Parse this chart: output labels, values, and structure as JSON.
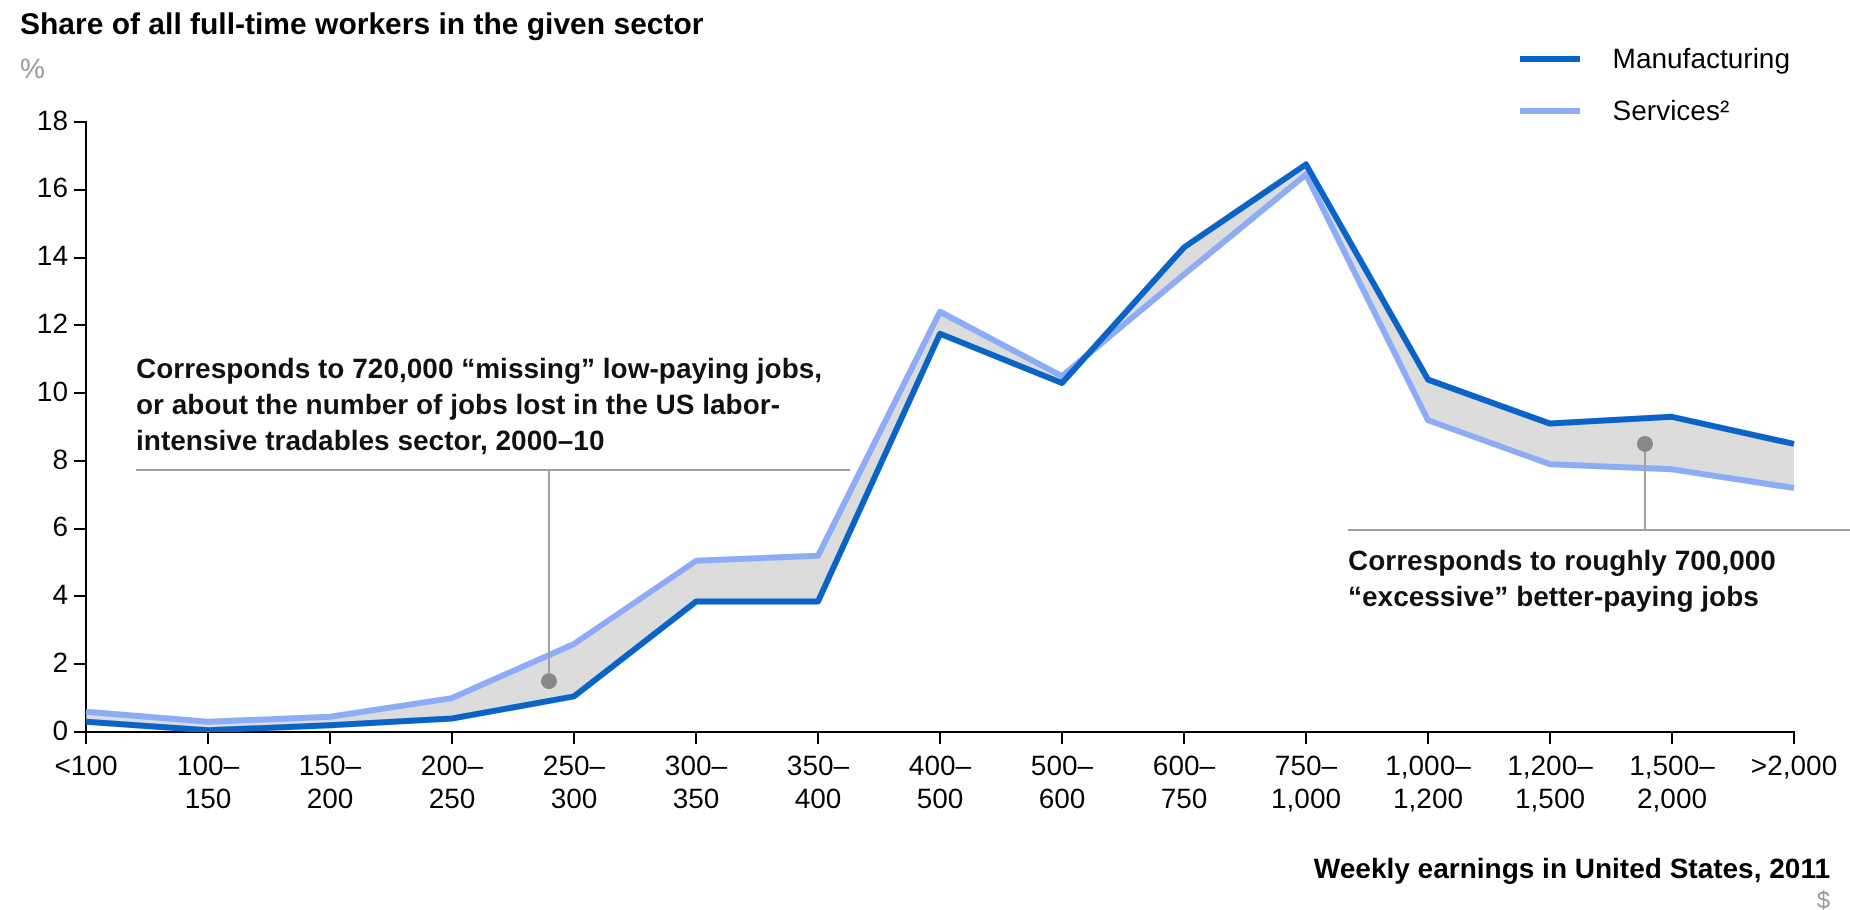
{
  "chart_data": {
    "type": "line",
    "title": "Share of all full-time workers in the given sector",
    "ylabel": "%",
    "xlabel": "Weekly earnings in United States, 2011",
    "categories": [
      "<100",
      "100–150",
      "150–200",
      "200–250",
      "250–300",
      "300–350",
      "350–400",
      "400–500",
      "500–600",
      "600–750",
      "750–1,000",
      "1,000–1,200",
      "1,200–1,500",
      "1,500–2,000",
      ">2,000"
    ],
    "series": [
      {
        "name": "Manufacturing",
        "color": "#0a64c8",
        "values": [
          0.3,
          0.05,
          0.2,
          0.4,
          1.05,
          3.85,
          3.85,
          11.75,
          10.3,
          14.3,
          16.75,
          10.4,
          9.1,
          9.3,
          8.5
        ]
      },
      {
        "name": "Services²",
        "color": "#8cacf5",
        "values": [
          0.6,
          0.3,
          0.45,
          1.0,
          2.6,
          5.05,
          5.2,
          12.4,
          10.5,
          13.5,
          16.45,
          9.2,
          7.9,
          7.75,
          7.2
        ]
      }
    ],
    "ylim": [
      0,
      18
    ],
    "yticks": [
      0,
      2,
      4,
      6,
      8,
      10,
      12,
      14,
      16,
      18
    ],
    "grid": false,
    "legend": "top right",
    "marker": "none",
    "line_style": "solid",
    "annotations": [
      "Corresponds to 720,000 “missing” low-paying jobs, or about the number of jobs lost in the US labor-intensive tradables sector, 2000–10",
      "Corresponds to roughly 700,000 “excessive” better-paying jobs",
      "$"
    ]
  }
}
